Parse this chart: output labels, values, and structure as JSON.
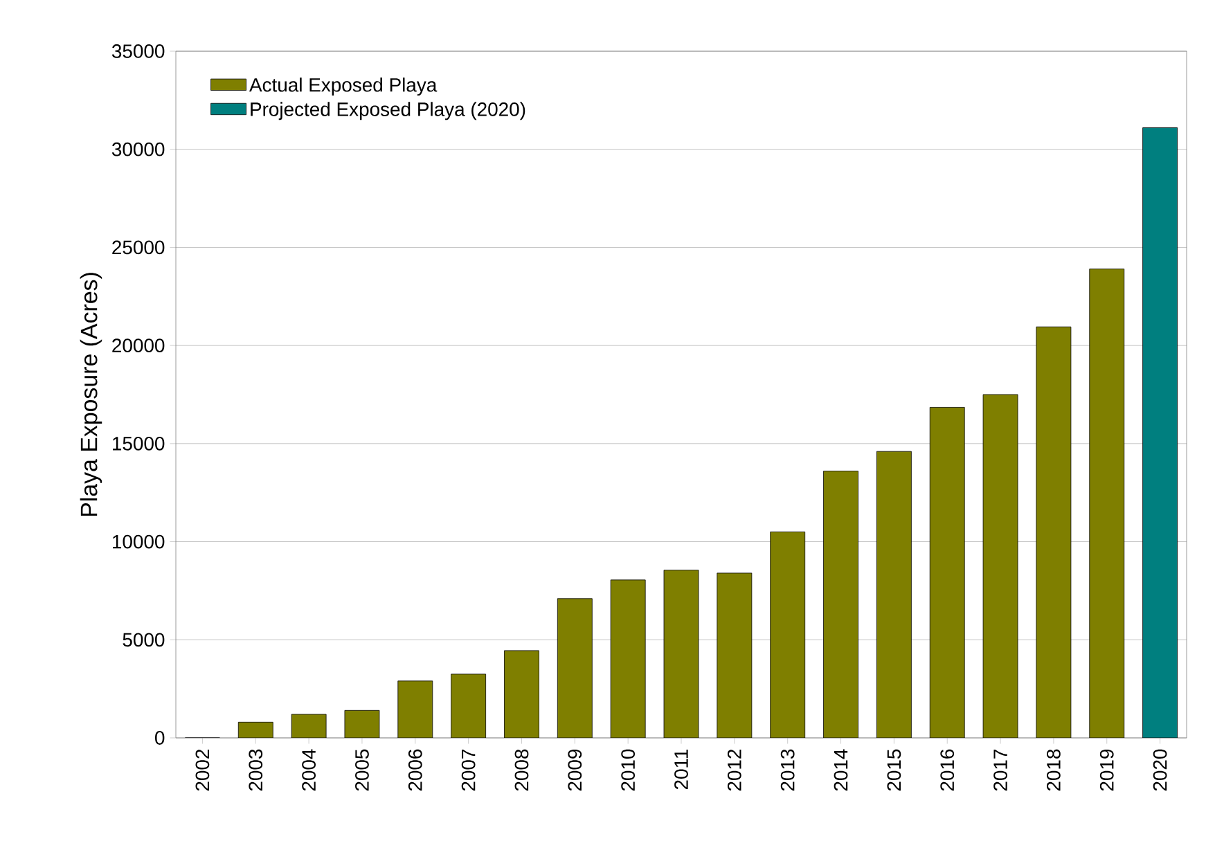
{
  "chart_data": {
    "type": "bar",
    "ylabel": "Playa Exposure (Acres)",
    "categories": [
      "2002",
      "2003",
      "2004",
      "2005",
      "2006",
      "2007",
      "2008",
      "2009",
      "2010",
      "2011",
      "2012",
      "2013",
      "2014",
      "2015",
      "2016",
      "2017",
      "2018",
      "2019",
      "2020"
    ],
    "series": [
      {
        "name": "Actual Exposed Playa",
        "color": "#7f7f00",
        "values": [
          0,
          800,
          1200,
          1400,
          2900,
          3250,
          4450,
          7100,
          8050,
          8550,
          8400,
          10500,
          13600,
          14600,
          16850,
          17500,
          20950,
          23900,
          null
        ]
      },
      {
        "name": "Projected Exposed Playa (2020)",
        "color": "#007f7f",
        "values": [
          null,
          null,
          null,
          null,
          null,
          null,
          null,
          null,
          null,
          null,
          null,
          null,
          null,
          null,
          null,
          null,
          null,
          null,
          31100
        ]
      }
    ],
    "ylim": [
      0,
      35000
    ],
    "yticks": [
      0,
      5000,
      10000,
      15000,
      20000,
      25000,
      30000,
      35000
    ],
    "grid": "y",
    "legend": "top left"
  }
}
